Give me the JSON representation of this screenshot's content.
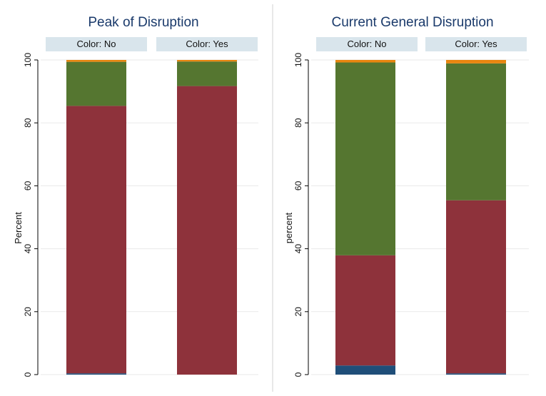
{
  "chart_data": [
    {
      "type": "bar",
      "stacked": true,
      "title": "Peak of Disruption",
      "ylabel": "Percent",
      "ylim": [
        0,
        100
      ],
      "yticks": [
        0,
        20,
        40,
        60,
        80,
        100
      ],
      "grid": true,
      "categories": [
        "Color: No",
        "Color: Yes"
      ],
      "series": [
        {
          "color": "#1f4e79",
          "values": [
            0.4,
            0.0
          ]
        },
        {
          "color": "#8e323b",
          "values": [
            85.0,
            91.7
          ]
        },
        {
          "color": "#557630",
          "values": [
            14.0,
            7.8
          ]
        },
        {
          "color": "#e8860f",
          "values": [
            0.6,
            0.5
          ]
        }
      ]
    },
    {
      "type": "bar",
      "stacked": true,
      "title": "Current General Disruption",
      "ylabel": "percent",
      "ylim": [
        0,
        100
      ],
      "yticks": [
        0,
        20,
        40,
        60,
        80,
        100
      ],
      "grid": true,
      "categories": [
        "Color: No",
        "Color: Yes"
      ],
      "series": [
        {
          "color": "#1f4e79",
          "values": [
            2.9,
            0.4
          ]
        },
        {
          "color": "#8e323b",
          "values": [
            35.0,
            55.0
          ]
        },
        {
          "color": "#557630",
          "values": [
            61.3,
            43.5
          ]
        },
        {
          "color": "#e8860f",
          "values": [
            0.8,
            1.1
          ]
        }
      ]
    }
  ],
  "colors": {
    "panel_title": "#1a3a6b",
    "strip_background": "#d9e5ec",
    "gridline": "#eaeaea",
    "axis": "#000000",
    "divider": "#d0d0d0"
  }
}
